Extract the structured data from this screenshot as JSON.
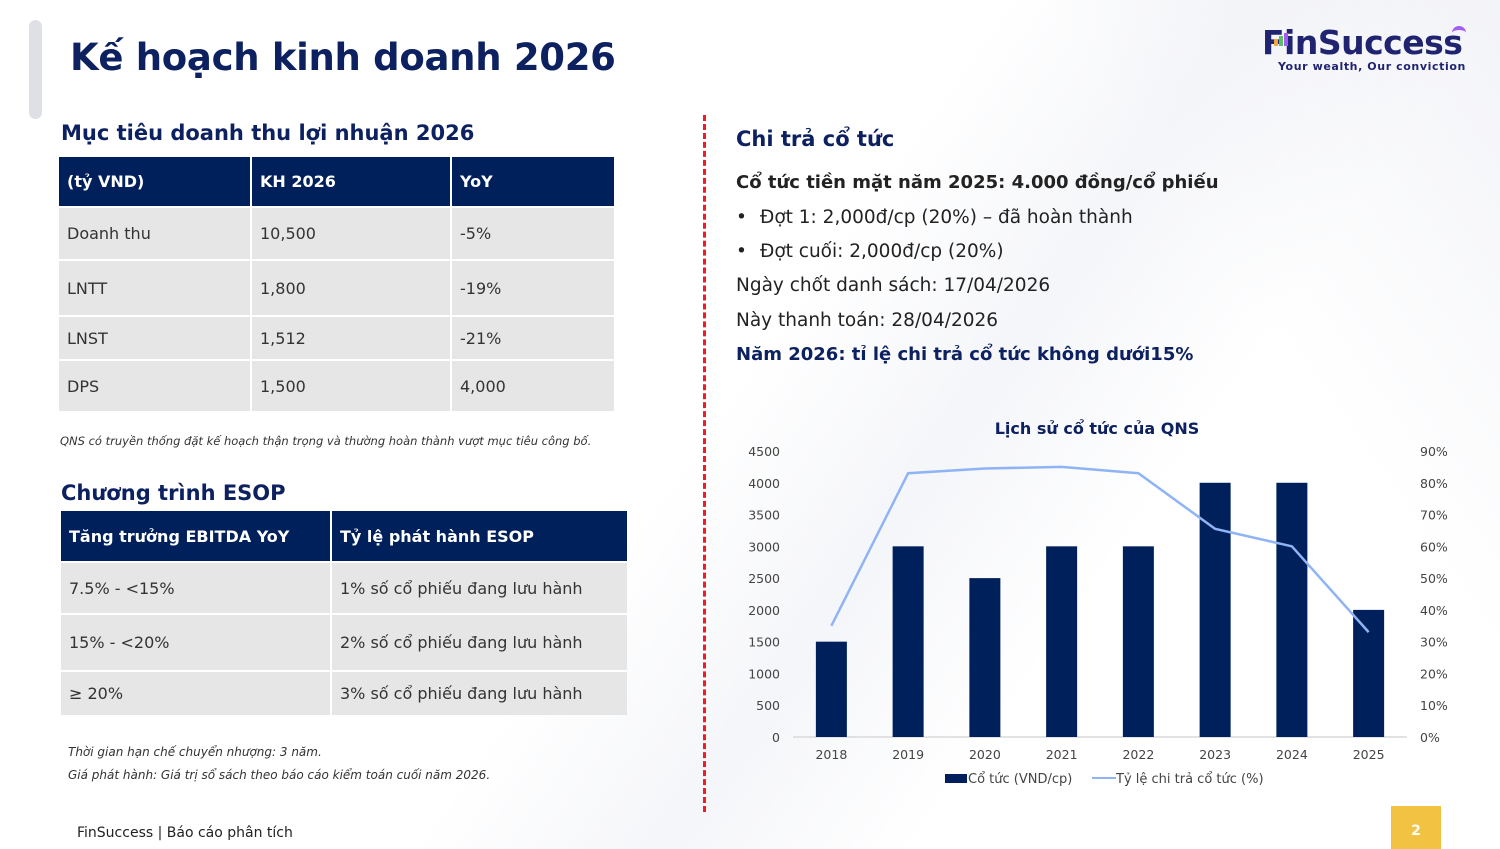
{
  "page": {
    "title": "Kế hoạch kinh doanh 2026",
    "page_number": "2",
    "footer": "FinSuccess | Báo cáo phân tích"
  },
  "logo": {
    "brand": "FinSuccess",
    "tagline": "Your wealth, Our conviction",
    "colors": {
      "text": "#1f2370",
      "bar1": "#f2a93b",
      "bar2": "#5cc160",
      "bar3": "#a35df0"
    }
  },
  "targets": {
    "title": "Mục tiêu doanh thu lợi nhuận 2026",
    "headers": [
      "(tỷ VND)",
      "KH 2026",
      "YoY"
    ],
    "rows": [
      [
        "Doanh thu",
        "10,500",
        "-5%"
      ],
      [
        "LNTT",
        "1,800",
        "-19%"
      ],
      [
        "LNST",
        "1,512",
        "-21%"
      ],
      [
        "DPS",
        "1,500",
        "4,000"
      ]
    ],
    "note": "QNS có truyền thống đặt kế hoạch thận trọng và thường hoàn thành vượt mục tiêu công bố."
  },
  "esop": {
    "title": "Chương trình ESOP",
    "headers": [
      "Tăng trưởng EBITDA YoY",
      "Tỷ lệ phát hành ESOP"
    ],
    "rows": [
      [
        "7.5% - <15%",
        "1% số cổ phiếu đang lưu hành"
      ],
      [
        "15% - <20%",
        "2% số cổ phiếu đang lưu hành"
      ],
      [
        "≥ 20%",
        "3% số cổ phiếu đang lưu hành"
      ]
    ],
    "notes": [
      "Thời gian hạn chế chuyển nhượng: 3 năm.",
      "Giá phát hành: Giá trị sổ sách theo báo cáo kiểm toán cuối năm 2026."
    ]
  },
  "dividend": {
    "title": "Chi trả cổ tức",
    "headline": "Cổ tức tiền mặt năm 2025: 4.000 đồng/cổ phiếu",
    "bullets": [
      "Đợt 1: 2,000đ/cp (20%) – đã hoàn thành",
      "Đợt cuối: 2,000đ/cp (20%)"
    ],
    "record_date": "Ngày chốt danh sách: 17/04/2026",
    "payment_date": "Này thanh toán: 28/04/2026",
    "policy": "Năm 2026: tỉ lệ chi trả cổ tức không  dưới15%"
  },
  "chart_data": {
    "type": "bar",
    "title": "Lịch sử cổ tức của QNS",
    "categories": [
      "2018",
      "2019",
      "2020",
      "2021",
      "2022",
      "2023",
      "2024",
      "2025"
    ],
    "series": [
      {
        "name": "Cổ tức (VND/cp)",
        "type": "bar",
        "axis": "left",
        "color": "#00205b",
        "values": [
          1500,
          3000,
          2500,
          3000,
          3000,
          4000,
          4000,
          2000
        ]
      },
      {
        "name": "Tỷ lệ chi trả cổ tức (%)",
        "type": "line",
        "axis": "right",
        "color": "#8fb4f5",
        "values": [
          35,
          83,
          84.5,
          85,
          83,
          65.5,
          60,
          33
        ]
      }
    ],
    "ylim": [
      0,
      4500
    ],
    "yticks": [
      "0",
      "500",
      "1000",
      "1500",
      "2000",
      "2500",
      "3000",
      "3500",
      "4000",
      "4500"
    ],
    "y2lim": [
      0,
      90
    ],
    "y2ticks": [
      "0%",
      "10%",
      "20%",
      "30%",
      "40%",
      "50%",
      "60%",
      "70%",
      "80%",
      "90%"
    ],
    "legend": "bottom",
    "grid": false
  }
}
